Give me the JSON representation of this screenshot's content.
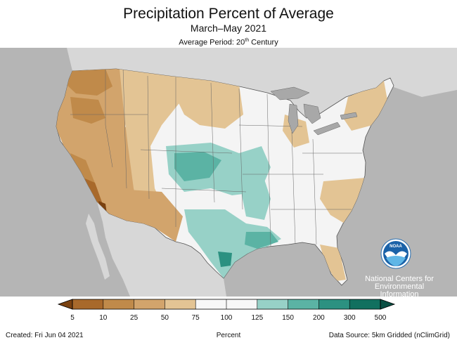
{
  "header": {
    "title": "Precipitation Percent of Average",
    "subtitle": "March–May 2021",
    "avg_period_prefix": "Average Period: 20",
    "avg_period_sup": "th",
    "avg_period_suffix": " Century"
  },
  "logo": {
    "badge_text": "NOAA",
    "org_line1": "National Centers for",
    "org_line2": "Environmental",
    "org_line3": "Information"
  },
  "legend": {
    "ticks": [
      "5",
      "10",
      "25",
      "50",
      "75",
      "100",
      "125",
      "150",
      "200",
      "300",
      "500"
    ],
    "bins": [
      {
        "color": "#a8692b"
      },
      {
        "color": "#c08a4a"
      },
      {
        "color": "#d2a46c"
      },
      {
        "color": "#e3c494"
      },
      {
        "color": "#f7f7f7"
      },
      {
        "color": "#f7f7f7"
      },
      {
        "color": "#97d1c7"
      },
      {
        "color": "#5bb3a4"
      },
      {
        "color": "#2c9181"
      },
      {
        "color": "#11705f"
      }
    ],
    "under_color": "#7a4110",
    "over_color": "#0b4f44"
  },
  "colors": {
    "ocean_gray": "#b5b5b5",
    "land_gray": "#d7d7d7",
    "lake_gray": "#a8a8a8",
    "noaa_blue": "#1a62a8",
    "noaa_light_blue": "#5fb6e6"
  },
  "footer": {
    "created": "Created: Fri Jun 04 2021",
    "unit_label": "Percent",
    "source": "Data Source: 5km Gridded (nClimGrid)"
  }
}
